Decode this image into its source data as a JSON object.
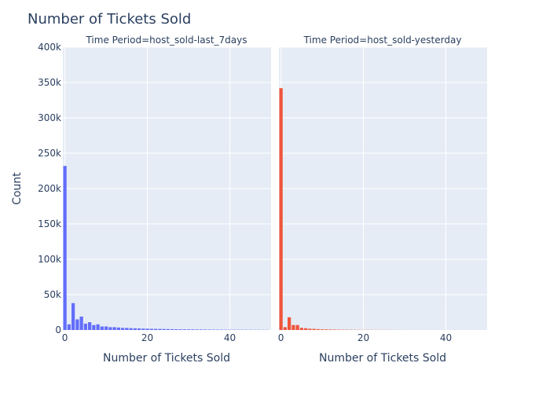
{
  "chart_data": {
    "type": "bar",
    "title": "Number of Tickets Sold",
    "ylabel": "Count",
    "ylim": [
      0,
      400000
    ],
    "yticks": [
      "0",
      "50k",
      "100k",
      "150k",
      "200k",
      "250k",
      "300k",
      "350k",
      "400k"
    ],
    "grid": true,
    "panels": [
      {
        "facet_label": "Time Period=host_sold-last_7days",
        "xlabel": "Number of Tickets Sold",
        "xticks": [
          "0",
          "20",
          "40"
        ],
        "color": "#636efa",
        "bins": [
          0,
          1,
          2,
          3,
          4,
          5,
          6,
          7,
          8,
          9,
          10,
          11,
          12,
          13,
          14,
          15,
          16,
          17,
          18,
          19,
          20,
          21,
          22,
          23,
          24,
          25,
          26,
          27,
          28,
          29,
          30,
          31,
          32,
          33,
          34,
          35,
          36,
          37,
          38,
          39,
          40,
          41,
          42,
          43,
          44,
          45,
          46,
          47,
          48,
          49
        ],
        "values": [
          232000,
          8000,
          38000,
          15000,
          19000,
          9000,
          11000,
          7000,
          8000,
          5000,
          5000,
          4000,
          4000,
          3500,
          3000,
          3000,
          2600,
          2400,
          2200,
          2000,
          1900,
          1700,
          1600,
          1500,
          1400,
          1300,
          1200,
          1100,
          1000,
          950,
          900,
          850,
          800,
          750,
          700,
          650,
          600,
          550,
          500,
          450,
          400,
          380,
          360,
          340,
          320,
          300,
          280,
          260,
          240,
          220
        ]
      },
      {
        "facet_label": "Time Period=host_sold-yesterday",
        "xlabel": "Number of Tickets Sold",
        "xticks": [
          "0",
          "20",
          "40"
        ],
        "color": "#ef553b",
        "bins": [
          0,
          1,
          2,
          3,
          4,
          5,
          6,
          7,
          8,
          9,
          10,
          11,
          12,
          13,
          14,
          15,
          16,
          17,
          18,
          19,
          20,
          21,
          22,
          23,
          24,
          25,
          26,
          27,
          28,
          29,
          30,
          31,
          32,
          33,
          34,
          35,
          36,
          37,
          38,
          39,
          40,
          41,
          42,
          43,
          44,
          45,
          46,
          47,
          48,
          49
        ],
        "values": [
          342000,
          4000,
          18000,
          7000,
          7000,
          3000,
          2500,
          1800,
          1600,
          1200,
          1000,
          800,
          700,
          600,
          500,
          450,
          400,
          350,
          300,
          260,
          230,
          200,
          180,
          160,
          140,
          120,
          110,
          100,
          90,
          80,
          70,
          60,
          55,
          50,
          45,
          40,
          35,
          30,
          28,
          26,
          24,
          22,
          20,
          18,
          16,
          14,
          12,
          10,
          8,
          6
        ]
      }
    ]
  }
}
